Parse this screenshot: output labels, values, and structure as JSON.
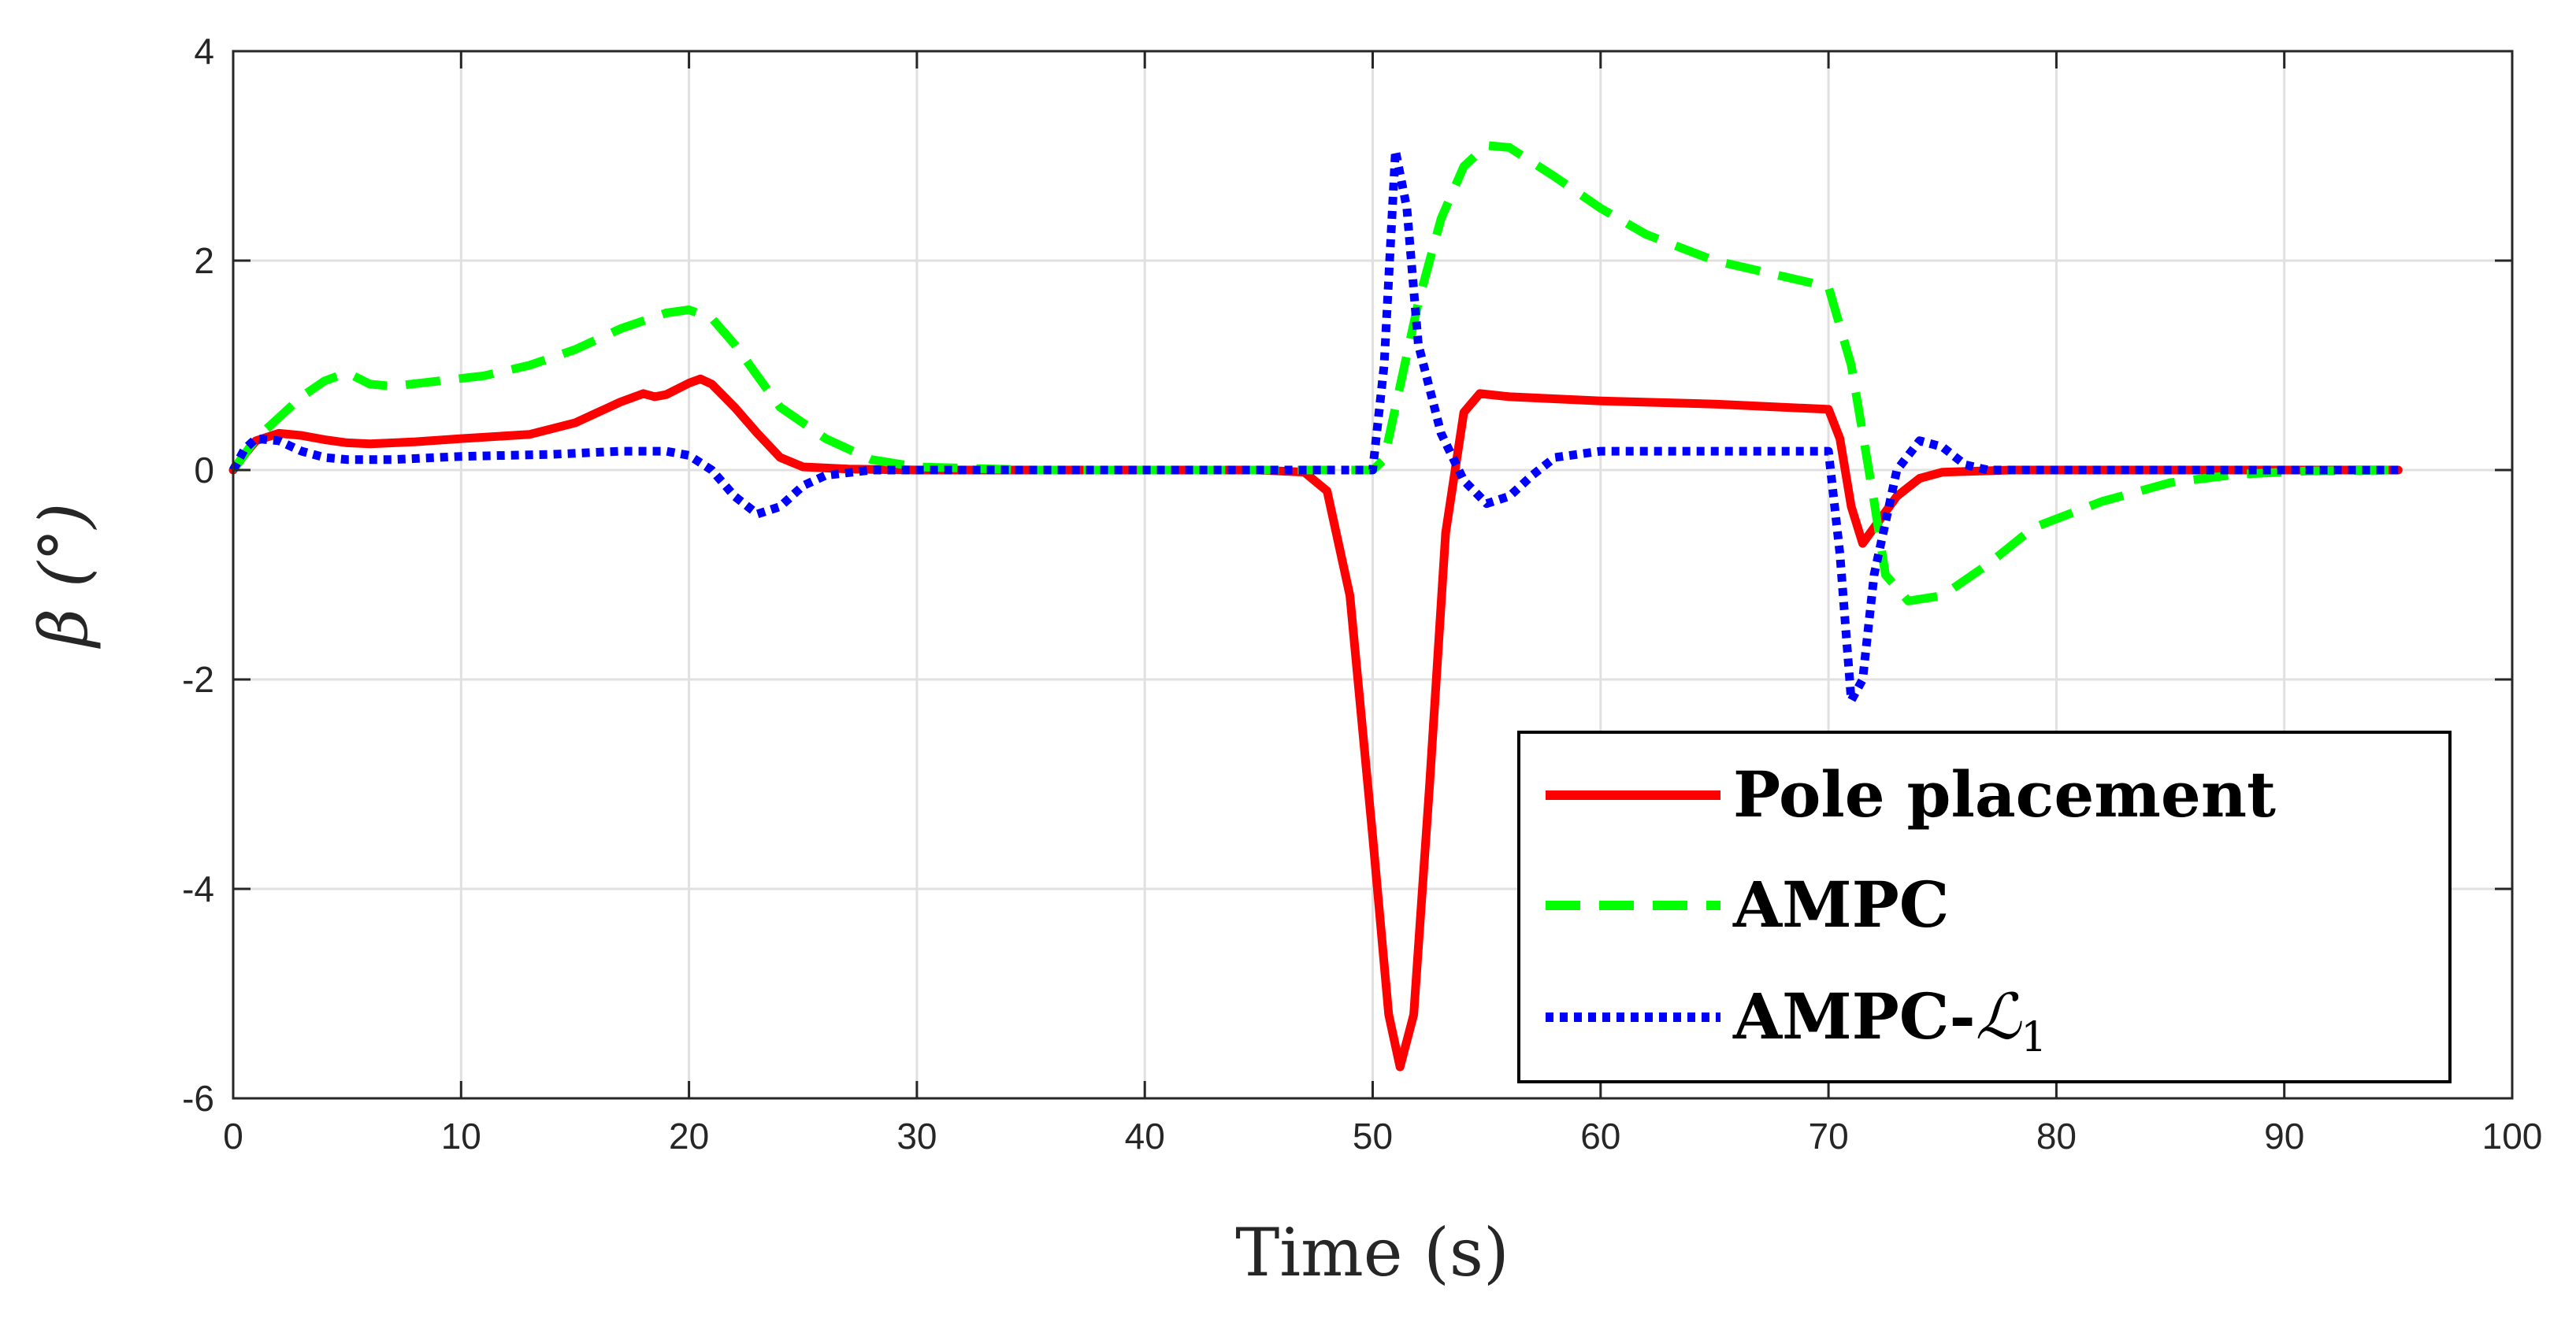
{
  "chart_data": {
    "type": "line",
    "title": "",
    "xlabel": "Time (s)",
    "ylabel": "β (°)",
    "xlim": [
      0,
      100
    ],
    "ylim": [
      -6,
      4
    ],
    "grid": true,
    "x_ticks": [
      0,
      10,
      20,
      30,
      40,
      50,
      60,
      70,
      80,
      90,
      100
    ],
    "y_ticks": [
      -6,
      -4,
      -2,
      0,
      2,
      4
    ],
    "legend_position": "bottom-right",
    "series": [
      {
        "name": "Pole placement",
        "legend_label": "Pole placement",
        "color": "#ff0000",
        "style": "solid",
        "points": [
          [
            0,
            0
          ],
          [
            0.5,
            0.15
          ],
          [
            1,
            0.28
          ],
          [
            2,
            0.35
          ],
          [
            3,
            0.33
          ],
          [
            4,
            0.29
          ],
          [
            5,
            0.26
          ],
          [
            6,
            0.25
          ],
          [
            8,
            0.27
          ],
          [
            10,
            0.3
          ],
          [
            13,
            0.34
          ],
          [
            15,
            0.45
          ],
          [
            16,
            0.55
          ],
          [
            17,
            0.65
          ],
          [
            18,
            0.73
          ],
          [
            18.5,
            0.7
          ],
          [
            19,
            0.72
          ],
          [
            20,
            0.83
          ],
          [
            20.5,
            0.87
          ],
          [
            21,
            0.82
          ],
          [
            22,
            0.6
          ],
          [
            23,
            0.35
          ],
          [
            24,
            0.12
          ],
          [
            25,
            0.03
          ],
          [
            27,
            0.01
          ],
          [
            30,
            0
          ],
          [
            40,
            0
          ],
          [
            45,
            0
          ],
          [
            47,
            -0.02
          ],
          [
            48,
            -0.2
          ],
          [
            49,
            -1.2
          ],
          [
            50,
            -3.5
          ],
          [
            50.7,
            -5.2
          ],
          [
            51.2,
            -5.7
          ],
          [
            51.8,
            -5.2
          ],
          [
            52.5,
            -3.0
          ],
          [
            53.2,
            -0.6
          ],
          [
            54,
            0.55
          ],
          [
            54.7,
            0.73
          ],
          [
            56,
            0.7
          ],
          [
            60,
            0.66
          ],
          [
            65,
            0.63
          ],
          [
            70,
            0.58
          ],
          [
            70.5,
            0.3
          ],
          [
            71,
            -0.35
          ],
          [
            71.5,
            -0.7
          ],
          [
            72,
            -0.55
          ],
          [
            73,
            -0.25
          ],
          [
            74,
            -0.08
          ],
          [
            75,
            -0.02
          ],
          [
            78,
            0
          ],
          [
            95,
            0
          ]
        ]
      },
      {
        "name": "AMPC",
        "legend_label": "AMPC",
        "color": "#00ff00",
        "style": "dashed",
        "points": [
          [
            0,
            0
          ],
          [
            1,
            0.3
          ],
          [
            2,
            0.5
          ],
          [
            3,
            0.7
          ],
          [
            4,
            0.85
          ],
          [
            5,
            0.93
          ],
          [
            6,
            0.82
          ],
          [
            7,
            0.8
          ],
          [
            9,
            0.85
          ],
          [
            11,
            0.9
          ],
          [
            13,
            1.0
          ],
          [
            15,
            1.15
          ],
          [
            17,
            1.35
          ],
          [
            19,
            1.5
          ],
          [
            20,
            1.53
          ],
          [
            21,
            1.45
          ],
          [
            22,
            1.2
          ],
          [
            23,
            0.9
          ],
          [
            24,
            0.6
          ],
          [
            26,
            0.3
          ],
          [
            28,
            0.1
          ],
          [
            30,
            0.03
          ],
          [
            35,
            0
          ],
          [
            49,
            0
          ],
          [
            50,
            0
          ],
          [
            50.5,
            0.1
          ],
          [
            51,
            0.6
          ],
          [
            52,
            1.6
          ],
          [
            53,
            2.4
          ],
          [
            54,
            2.9
          ],
          [
            55,
            3.1
          ],
          [
            56,
            3.08
          ],
          [
            58,
            2.8
          ],
          [
            60,
            2.5
          ],
          [
            62,
            2.25
          ],
          [
            65,
            2.0
          ],
          [
            68,
            1.85
          ],
          [
            70,
            1.75
          ],
          [
            71,
            1.0
          ],
          [
            72,
            -0.3
          ],
          [
            72.5,
            -1.0
          ],
          [
            73.5,
            -1.25
          ],
          [
            75,
            -1.2
          ],
          [
            77,
            -0.9
          ],
          [
            79,
            -0.55
          ],
          [
            82,
            -0.3
          ],
          [
            85,
            -0.12
          ],
          [
            88,
            -0.04
          ],
          [
            91,
            -0.01
          ],
          [
            95,
            0
          ]
        ]
      },
      {
        "name": "AMPC-L1",
        "legend_label": "AMPC-",
        "legend_script": "ℒ",
        "legend_subscript": "1",
        "color": "#0000ff",
        "style": "dotted",
        "points": [
          [
            0,
            0
          ],
          [
            0.5,
            0.2
          ],
          [
            1,
            0.3
          ],
          [
            2,
            0.28
          ],
          [
            3,
            0.18
          ],
          [
            4,
            0.12
          ],
          [
            5,
            0.1
          ],
          [
            7,
            0.1
          ],
          [
            10,
            0.13
          ],
          [
            14,
            0.15
          ],
          [
            17,
            0.18
          ],
          [
            19,
            0.18
          ],
          [
            20,
            0.14
          ],
          [
            21,
            0.0
          ],
          [
            22,
            -0.25
          ],
          [
            23,
            -0.42
          ],
          [
            24,
            -0.35
          ],
          [
            25,
            -0.15
          ],
          [
            26,
            -0.05
          ],
          [
            28,
            0
          ],
          [
            49,
            0
          ],
          [
            50,
            0
          ],
          [
            50.5,
            1.0
          ],
          [
            51,
            3.05
          ],
          [
            51.5,
            2.5
          ],
          [
            52,
            1.2
          ],
          [
            53,
            0.35
          ],
          [
            54,
            -0.1
          ],
          [
            55,
            -0.32
          ],
          [
            56,
            -0.25
          ],
          [
            57,
            -0.05
          ],
          [
            58,
            0.12
          ],
          [
            60,
            0.18
          ],
          [
            65,
            0.18
          ],
          [
            70,
            0.18
          ],
          [
            70.5,
            -0.8
          ],
          [
            71,
            -2.2
          ],
          [
            71.5,
            -2.0
          ],
          [
            72,
            -1.0
          ],
          [
            73,
            0.0
          ],
          [
            74,
            0.28
          ],
          [
            75,
            0.22
          ],
          [
            76,
            0.05
          ],
          [
            77,
            0
          ],
          [
            78,
            0
          ],
          [
            95,
            0
          ]
        ]
      }
    ]
  }
}
